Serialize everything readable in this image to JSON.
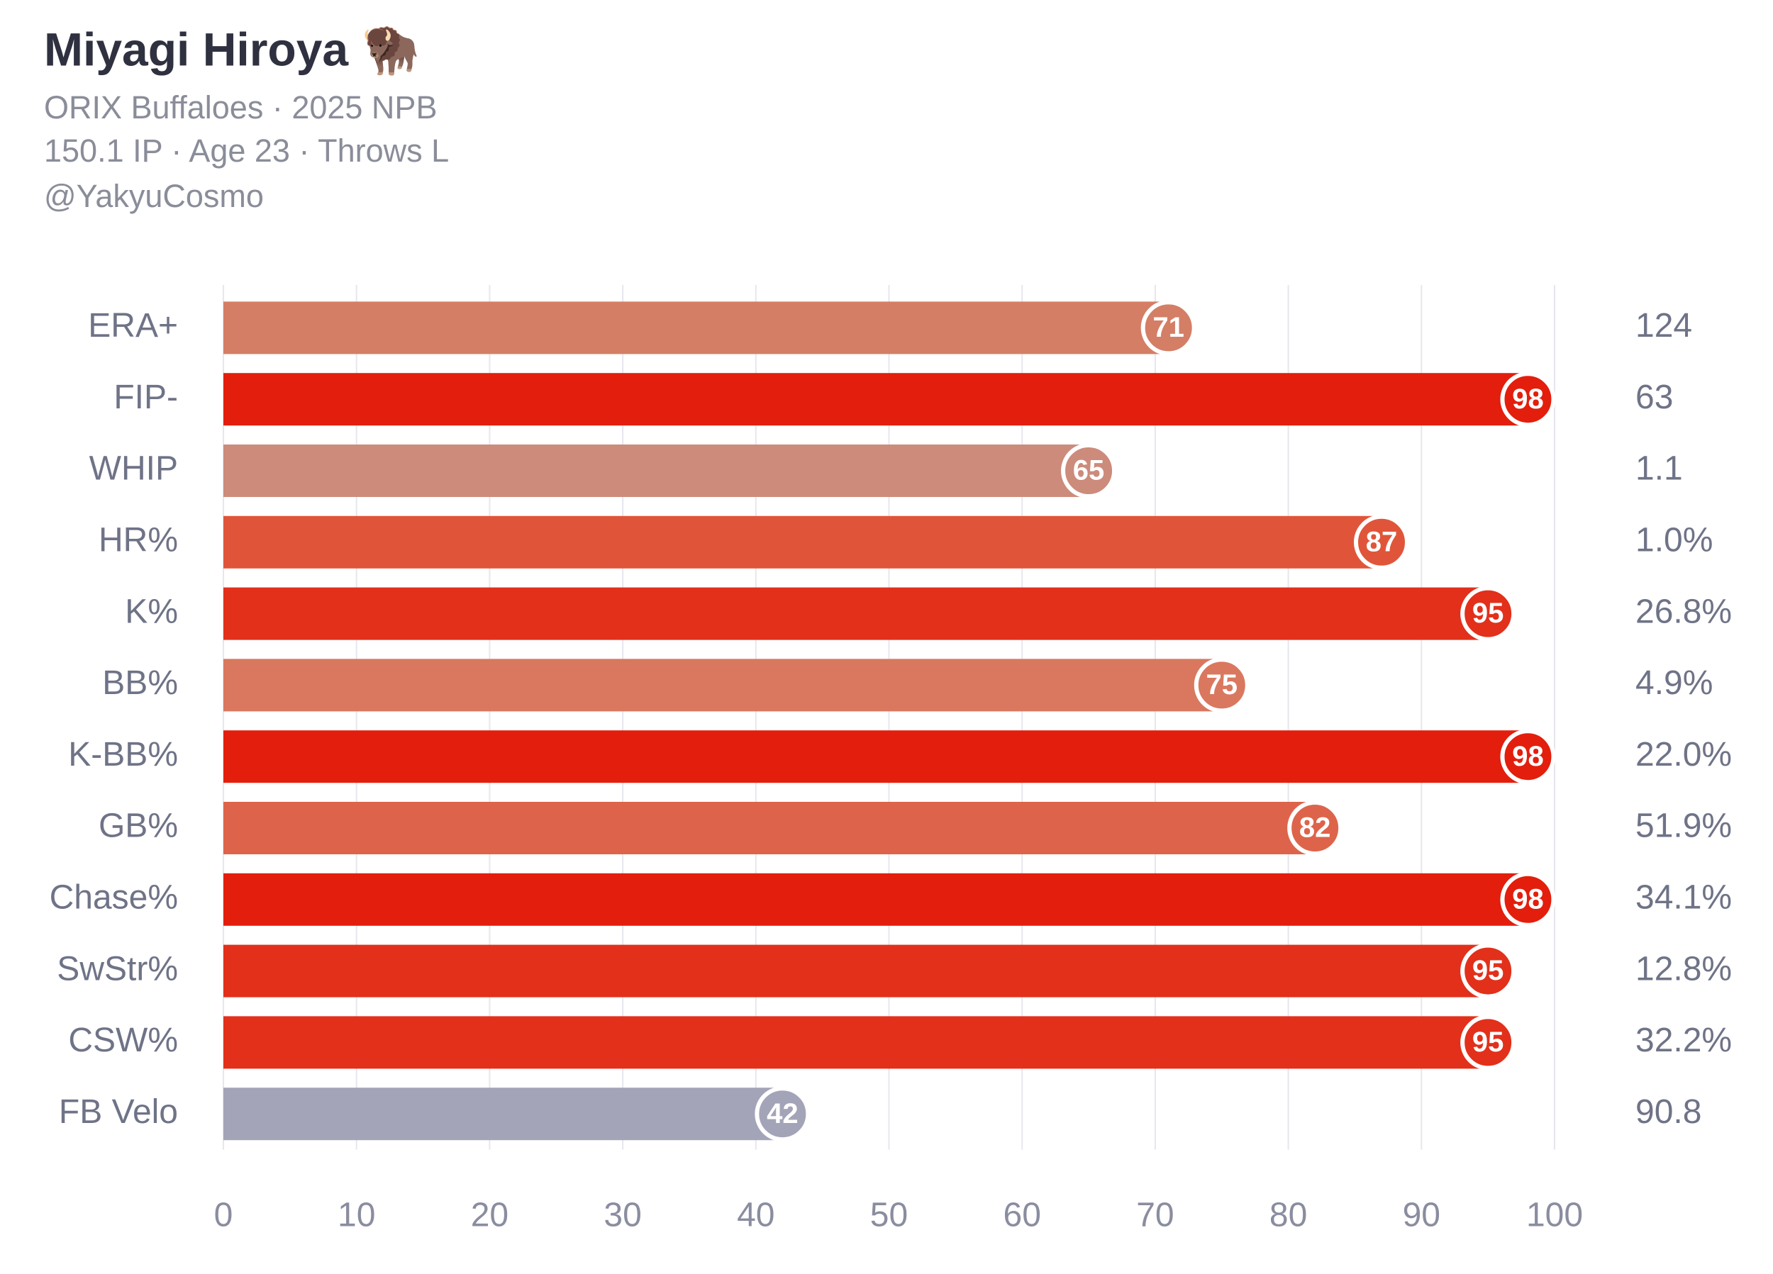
{
  "chart_data": {
    "type": "bar",
    "orientation": "horizontal",
    "title": "Miyagi Hiroya 🦬",
    "subtitle": [
      "ORIX Buffaloes · 2025 NPB",
      "150.1 IP · Age 23 · Throws L",
      "@YakyuCosmo"
    ],
    "categories": [
      "ERA+",
      "FIP-",
      "WHIP",
      "HR%",
      "K%",
      "BB%",
      "K-BB%",
      "GB%",
      "Chase%",
      "SwStr%",
      "CSW%",
      "FB Velo"
    ],
    "values": [
      71,
      98,
      65,
      87,
      95,
      75,
      98,
      82,
      98,
      95,
      95,
      42
    ],
    "colors": [
      "#d47e66",
      "#e31e0c",
      "#cc8b7b",
      "#e0553a",
      "#e2301b",
      "#d9785f",
      "#e31e0c",
      "#dd644a",
      "#e31e0c",
      "#e2301b",
      "#e2301b",
      "#a3a4b8"
    ],
    "stats": [
      "124",
      "63",
      "1.1",
      "1.0%",
      "26.8%",
      "4.9%",
      "22.0%",
      "51.9%",
      "34.1%",
      "12.8%",
      "32.2%",
      "90.8"
    ],
    "xlim": [
      0,
      100
    ],
    "xticks": [
      0,
      10,
      20,
      30,
      40,
      50,
      60,
      70,
      80,
      90,
      100
    ],
    "grid": true
  }
}
